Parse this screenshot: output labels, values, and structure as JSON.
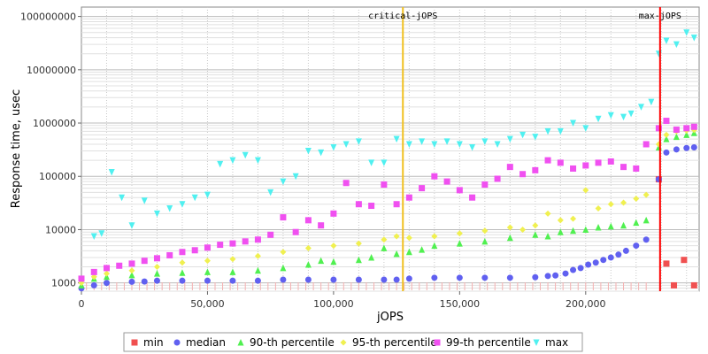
{
  "chart_data": {
    "type": "scatter",
    "title": "",
    "xlabel": "jOPS",
    "ylabel": "Response time, usec",
    "xlim": [
      0,
      245000
    ],
    "ylim": [
      700,
      150000000
    ],
    "yscale": "log",
    "grid": true,
    "x_ticks": [
      0,
      50000,
      100000,
      150000,
      200000
    ],
    "x_tick_labels": [
      "0",
      "50,000",
      "100,000",
      "150,000",
      "200,000"
    ],
    "y_ticks": [
      1000,
      10000,
      100000,
      1000000,
      10000000,
      100000000
    ],
    "y_tick_labels": [
      "1000",
      "10000",
      "100000",
      "1000000",
      "10000000",
      "100000000"
    ],
    "legend_position": "bottom",
    "vlines": [
      {
        "label": "critical-jOPS",
        "x": 127500,
        "color": "#f0c020"
      },
      {
        "label": "max-jOPS",
        "x": 229500,
        "color": "#ff0000"
      }
    ],
    "series": [
      {
        "name": "min",
        "color": "#f05050",
        "marker": "square",
        "points": [
          [
            229000,
            88000
          ],
          [
            232000,
            2300
          ],
          [
            235000,
            900
          ],
          [
            239000,
            2700
          ],
          [
            243000,
            900
          ]
        ]
      },
      {
        "name": "median",
        "color": "#6060f0",
        "marker": "circle",
        "points": [
          [
            0,
            790
          ],
          [
            5000,
            900
          ],
          [
            10000,
            1000
          ],
          [
            20000,
            1050
          ],
          [
            25000,
            1060
          ],
          [
            30000,
            1100
          ],
          [
            40000,
            1100
          ],
          [
            50000,
            1100
          ],
          [
            60000,
            1100
          ],
          [
            70000,
            1100
          ],
          [
            80000,
            1150
          ],
          [
            90000,
            1150
          ],
          [
            100000,
            1150
          ],
          [
            110000,
            1150
          ],
          [
            120000,
            1150
          ],
          [
            125000,
            1150
          ],
          [
            130000,
            1200
          ],
          [
            140000,
            1250
          ],
          [
            150000,
            1250
          ],
          [
            160000,
            1250
          ],
          [
            170000,
            1250
          ],
          [
            180000,
            1280
          ],
          [
            185000,
            1350
          ],
          [
            188000,
            1380
          ],
          [
            192000,
            1500
          ],
          [
            195000,
            1750
          ],
          [
            198000,
            1900
          ],
          [
            201000,
            2200
          ],
          [
            204000,
            2400
          ],
          [
            207000,
            2700
          ],
          [
            210000,
            3000
          ],
          [
            213000,
            3400
          ],
          [
            216000,
            4000
          ],
          [
            220000,
            5000
          ],
          [
            224000,
            6500
          ],
          [
            229000,
            88000
          ],
          [
            232000,
            280000
          ],
          [
            236000,
            320000
          ],
          [
            240000,
            340000
          ],
          [
            243000,
            350000
          ]
        ]
      },
      {
        "name": "90-th percentile",
        "color": "#50f050",
        "marker": "triangle-up",
        "points": [
          [
            0,
            900
          ],
          [
            5000,
            1200
          ],
          [
            10000,
            1300
          ],
          [
            20000,
            1400
          ],
          [
            30000,
            1500
          ],
          [
            40000,
            1550
          ],
          [
            50000,
            1600
          ],
          [
            60000,
            1600
          ],
          [
            70000,
            1700
          ],
          [
            80000,
            1900
          ],
          [
            90000,
            2200
          ],
          [
            95000,
            2600
          ],
          [
            100000,
            2500
          ],
          [
            110000,
            2700
          ],
          [
            115000,
            3000
          ],
          [
            120000,
            4500
          ],
          [
            125000,
            3500
          ],
          [
            130000,
            3800
          ],
          [
            135000,
            4200
          ],
          [
            140000,
            5000
          ],
          [
            150000,
            5500
          ],
          [
            160000,
            6000
          ],
          [
            170000,
            7000
          ],
          [
            180000,
            8000
          ],
          [
            185000,
            7500
          ],
          [
            190000,
            9000
          ],
          [
            195000,
            9500
          ],
          [
            200000,
            10000
          ],
          [
            205000,
            11000
          ],
          [
            210000,
            11500
          ],
          [
            215000,
            12000
          ],
          [
            220000,
            13500
          ],
          [
            224000,
            15000
          ],
          [
            229000,
            350000
          ],
          [
            232000,
            500000
          ],
          [
            236000,
            550000
          ],
          [
            240000,
            600000
          ],
          [
            243000,
            650000
          ]
        ]
      },
      {
        "name": "95-th percentile",
        "color": "#f0f050",
        "marker": "diamond",
        "points": [
          [
            0,
            1000
          ],
          [
            5000,
            1300
          ],
          [
            10000,
            1500
          ],
          [
            20000,
            1700
          ],
          [
            30000,
            2000
          ],
          [
            40000,
            2400
          ],
          [
            50000,
            2600
          ],
          [
            60000,
            2800
          ],
          [
            70000,
            3200
          ],
          [
            80000,
            3800
          ],
          [
            90000,
            4500
          ],
          [
            100000,
            5000
          ],
          [
            110000,
            5500
          ],
          [
            120000,
            6500
          ],
          [
            125000,
            7500
          ],
          [
            130000,
            7000
          ],
          [
            140000,
            7500
          ],
          [
            150000,
            8500
          ],
          [
            160000,
            9500
          ],
          [
            170000,
            11000
          ],
          [
            175000,
            10000
          ],
          [
            180000,
            12000
          ],
          [
            185000,
            20000
          ],
          [
            190000,
            15000
          ],
          [
            195000,
            16000
          ],
          [
            200000,
            55000
          ],
          [
            205000,
            25000
          ],
          [
            210000,
            30000
          ],
          [
            215000,
            32000
          ],
          [
            220000,
            38000
          ],
          [
            224000,
            45000
          ],
          [
            229000,
            400000
          ],
          [
            232000,
            600000
          ],
          [
            236000,
            700000
          ],
          [
            240000,
            720000
          ],
          [
            243000,
            740000
          ]
        ]
      },
      {
        "name": "99-th percentile",
        "color": "#f050f0",
        "marker": "square",
        "points": [
          [
            0,
            1200
          ],
          [
            5000,
            1600
          ],
          [
            10000,
            1900
          ],
          [
            15000,
            2100
          ],
          [
            20000,
            2300
          ],
          [
            25000,
            2600
          ],
          [
            30000,
            2900
          ],
          [
            35000,
            3300
          ],
          [
            40000,
            3800
          ],
          [
            45000,
            4100
          ],
          [
            50000,
            4600
          ],
          [
            55000,
            5200
          ],
          [
            60000,
            5500
          ],
          [
            65000,
            6000
          ],
          [
            70000,
            6500
          ],
          [
            75000,
            8000
          ],
          [
            80000,
            17000
          ],
          [
            85000,
            9000
          ],
          [
            90000,
            15000
          ],
          [
            95000,
            12000
          ],
          [
            100000,
            20000
          ],
          [
            105000,
            75000
          ],
          [
            110000,
            30000
          ],
          [
            115000,
            28000
          ],
          [
            120000,
            70000
          ],
          [
            125000,
            30000
          ],
          [
            130000,
            40000
          ],
          [
            135000,
            60000
          ],
          [
            140000,
            100000
          ],
          [
            145000,
            80000
          ],
          [
            150000,
            55000
          ],
          [
            155000,
            40000
          ],
          [
            160000,
            70000
          ],
          [
            165000,
            90000
          ],
          [
            170000,
            150000
          ],
          [
            175000,
            110000
          ],
          [
            180000,
            130000
          ],
          [
            185000,
            200000
          ],
          [
            190000,
            180000
          ],
          [
            195000,
            140000
          ],
          [
            200000,
            160000
          ],
          [
            205000,
            180000
          ],
          [
            210000,
            190000
          ],
          [
            215000,
            150000
          ],
          [
            220000,
            140000
          ],
          [
            224000,
            400000
          ],
          [
            229000,
            800000
          ],
          [
            232000,
            1100000
          ],
          [
            236000,
            750000
          ],
          [
            240000,
            800000
          ],
          [
            243000,
            850000
          ]
        ]
      },
      {
        "name": "max",
        "color": "#50f0f0",
        "marker": "triangle-down",
        "points": [
          [
            5000,
            7500
          ],
          [
            8000,
            8500
          ],
          [
            12000,
            120000
          ],
          [
            16000,
            40000
          ],
          [
            20000,
            12000
          ],
          [
            25000,
            35000
          ],
          [
            30000,
            20000
          ],
          [
            35000,
            25000
          ],
          [
            40000,
            30000
          ],
          [
            45000,
            40000
          ],
          [
            50000,
            45000
          ],
          [
            55000,
            170000
          ],
          [
            60000,
            200000
          ],
          [
            65000,
            250000
          ],
          [
            70000,
            200000
          ],
          [
            75000,
            50000
          ],
          [
            80000,
            80000
          ],
          [
            85000,
            100000
          ],
          [
            90000,
            300000
          ],
          [
            95000,
            280000
          ],
          [
            100000,
            350000
          ],
          [
            105000,
            400000
          ],
          [
            110000,
            450000
          ],
          [
            115000,
            180000
          ],
          [
            120000,
            180000
          ],
          [
            125000,
            500000
          ],
          [
            130000,
            400000
          ],
          [
            135000,
            450000
          ],
          [
            140000,
            400000
          ],
          [
            145000,
            450000
          ],
          [
            150000,
            400000
          ],
          [
            155000,
            350000
          ],
          [
            160000,
            450000
          ],
          [
            165000,
            400000
          ],
          [
            170000,
            500000
          ],
          [
            175000,
            600000
          ],
          [
            180000,
            550000
          ],
          [
            185000,
            700000
          ],
          [
            190000,
            700000
          ],
          [
            195000,
            1000000
          ],
          [
            200000,
            800000
          ],
          [
            205000,
            1200000
          ],
          [
            210000,
            1400000
          ],
          [
            215000,
            1300000
          ],
          [
            218000,
            1500000
          ],
          [
            222000,
            2000000
          ],
          [
            226000,
            2500000
          ],
          [
            229000,
            20000000
          ],
          [
            232000,
            35000000
          ],
          [
            236000,
            30000000
          ],
          [
            240000,
            50000000
          ],
          [
            243000,
            40000000
          ]
        ]
      }
    ]
  }
}
